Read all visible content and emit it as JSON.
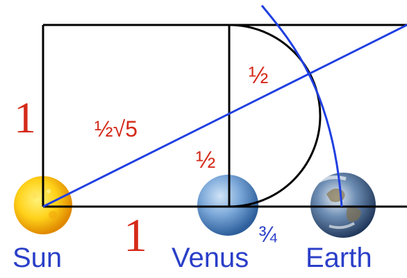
{
  "labels": {
    "side_one": "1",
    "base_one": "1",
    "hypotenuse": "½√5",
    "half_vertical": "½",
    "half_arc": "½",
    "three_quarters": "¾"
  },
  "bodies": {
    "sun": "Sun",
    "venus": "Venus",
    "earth": "Earth"
  },
  "colors": {
    "geometry": "#000000",
    "distance_line": "#1f3fe0",
    "label_red": "#d42a1a",
    "label_blue": "#2a3fc8"
  }
}
